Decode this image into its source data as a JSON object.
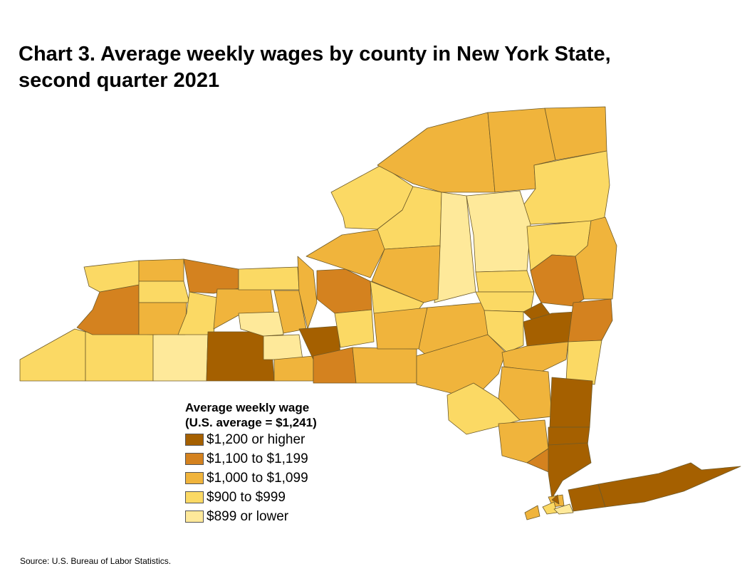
{
  "title": {
    "line1": "Chart 3. Average weekly wages by county in New York State,",
    "line2": "second quarter 2021"
  },
  "legend": {
    "title_line1": "Average weekly wage",
    "title_line2": "(U.S. average = $1,241)",
    "items": [
      {
        "label": "$1,200 or higher",
        "color": "#a56000"
      },
      {
        "label": "$1,100 to $1,199",
        "color": "#d4821f"
      },
      {
        "label": "$1,000 to $1,099",
        "color": "#f0b43c"
      },
      {
        "label": "$900 to $999",
        "color": "#fbd964"
      },
      {
        "label": "$899 or lower",
        "color": "#fee99a"
      }
    ]
  },
  "source": "Source: U.S. Bureau of Labor Statistics.",
  "map_colors": {
    "border": "#6e5a28",
    "classes": [
      "#a56000",
      "#d4821f",
      "#f0b43c",
      "#fbd964",
      "#fee99a"
    ]
  }
}
